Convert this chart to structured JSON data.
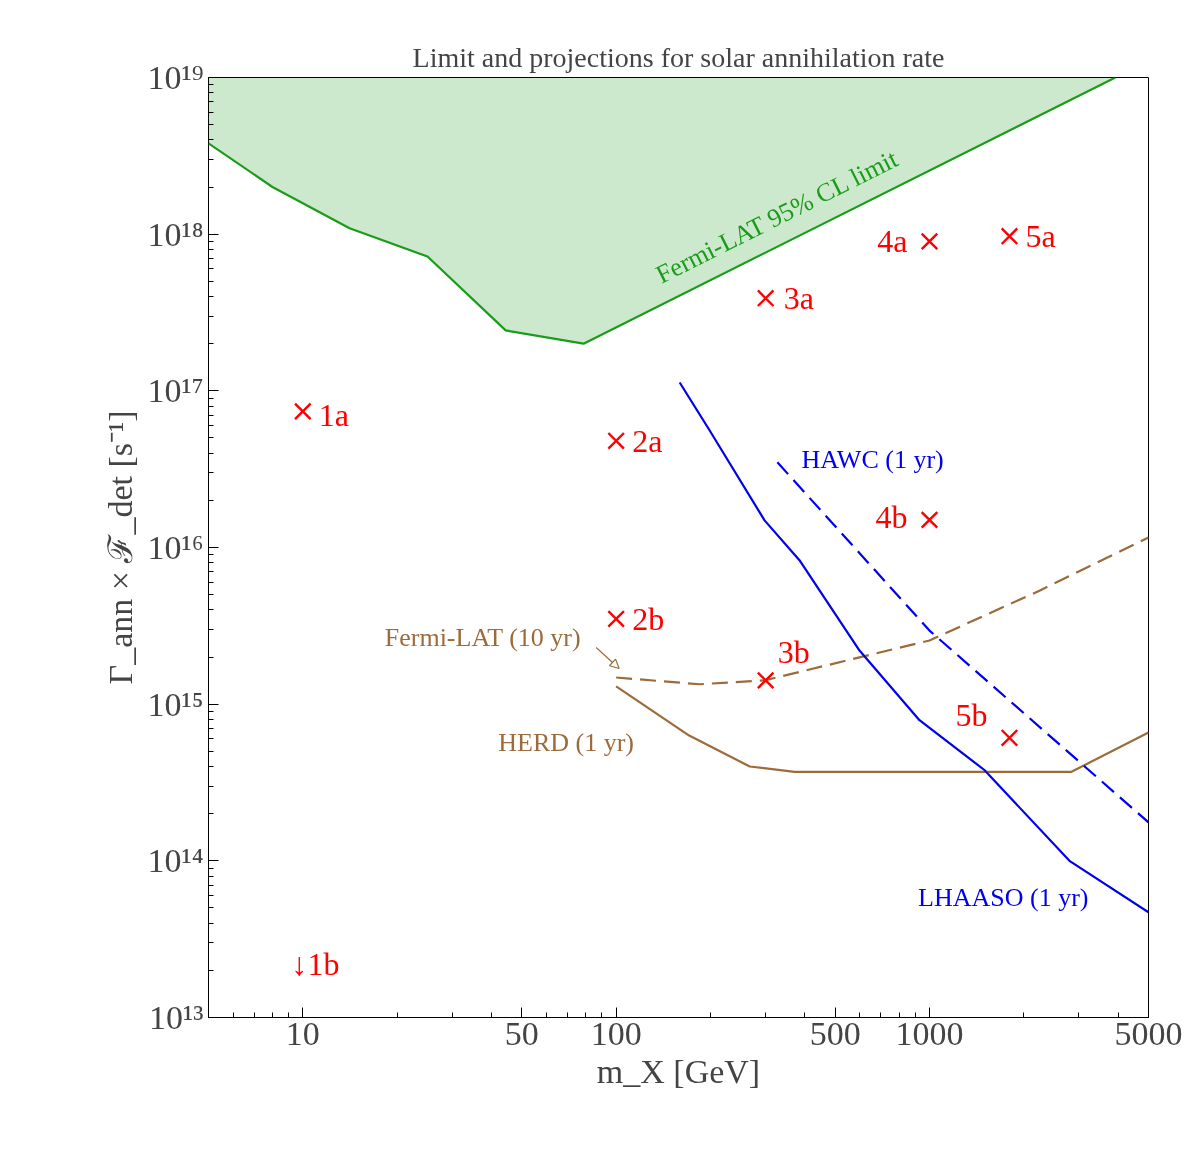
{
  "chart_data": {
    "type": "line",
    "title": "Limit and projections for solar annihilation rate",
    "xlabel": "m_X [GeV]",
    "ylabel": "Γ_ann × ℱ_det [s⁻¹]",
    "log": "xy",
    "grid": false,
    "xlim": [
      5,
      5000
    ],
    "ylim": [
      10000000000000.0,
      1e+19
    ],
    "xticks": [
      10,
      50,
      100,
      500,
      1000,
      5000
    ],
    "yticks": [
      {
        "value": 10000000000000.0,
        "label": "10¹³"
      },
      {
        "value": 100000000000000.0,
        "label": "10¹⁴"
      },
      {
        "value": 1000000000000000.0,
        "label": "10¹⁵"
      },
      {
        "value": 1e+16,
        "label": "10¹⁶"
      },
      {
        "value": 1e+17,
        "label": "10¹⁷"
      },
      {
        "value": 1e+18,
        "label": "10¹⁸"
      },
      {
        "value": 1e+19,
        "label": "10¹⁹"
      }
    ],
    "series": [
      {
        "name": "Fermi-LAT 95% CL limit",
        "color": "#1a9c1a",
        "line_style": "solid",
        "x": [
          5,
          8,
          14.1,
          25,
          44.4,
          78.7,
          3920
        ],
        "values": [
          3.8e+18,
          2e+18,
          1.09e+18,
          7.2e+17,
          2.43e+17,
          2e+17,
          1e+19
        ],
        "lower": [
          3.8e+18,
          2e+18,
          1.09e+18,
          7.2e+17,
          2.43e+17,
          2e+17,
          1e+19
        ],
        "upper": [
          1e+19,
          1e+19,
          1e+19,
          1e+19,
          1e+19,
          1e+19,
          1e+19
        ]
      },
      {
        "name": "Fermi-LAT (10 yr)",
        "color": "#9c6b3a",
        "line_style": "dashed",
        "x": [
          100,
          184.5,
          298,
          1000,
          2244,
          5000
        ],
        "values": [
          1480000000000000.0,
          1340000000000000.0,
          1420000000000000.0,
          2550000000000000.0,
          5300000000000000.0,
          1.16e+16
        ]
      },
      {
        "name": "HERD (1 yr)",
        "color": "#9c6b3a",
        "line_style": "solid",
        "x": [
          100,
          171,
          267,
          371,
          2839,
          5000
        ],
        "values": [
          1300000000000000.0,
          630000000000000.0,
          400000000000000.0,
          370000000000000.0,
          370000000000000.0,
          660000000000000.0
        ]
      },
      {
        "name": "HAWC (1 yr)",
        "color": "#0000ee",
        "line_style": "dashed",
        "x": [
          327,
          1000,
          5000
        ],
        "values": [
          3.5e+16,
          2950000000000000.0,
          176000000000000.0
        ]
      },
      {
        "name": "LHAASO (1 yr)",
        "color": "#0000ee",
        "line_style": "solid",
        "x": [
          159.5,
          198.6,
          297.6,
          384.6,
          598,
          929,
          1497,
          2797,
          5000
        ],
        "values": [
          1.13e+17,
          5.6e+16,
          1.49e+16,
          8300000000000000.0,
          2200000000000000.0,
          790000000000000.0,
          380000000000000.0,
          100000000000000.0,
          47000000000000.0
        ]
      },
      {
        "type": "scatter",
        "color": "#ff0000",
        "marker": "cross",
        "x": [
          10,
          100,
          100,
          300,
          300,
          1000,
          1000,
          1800,
          1800
        ],
        "values": [
          7.4e+16,
          4.8e+16,
          3500000000000000.0,
          3.9e+17,
          1420000000000000.0,
          9e+17,
          1.5e+16,
          9.7e+17,
          610000000000000.0
        ]
      }
    ],
    "annotations": [
      {
        "text": "1a",
        "x": 10,
        "y": 7.4e+16
      },
      {
        "text": "2a",
        "x": 100,
        "y": 4.8e+16
      },
      {
        "text": "2b",
        "x": 100,
        "y": 3500000000000000.0
      },
      {
        "text": "3a",
        "x": 300,
        "y": 3.9e+17
      },
      {
        "text": "3b",
        "x": 300,
        "y": 1420000000000000.0
      },
      {
        "text": "4a",
        "x": 1000,
        "y": 9e+17
      },
      {
        "text": "4b",
        "x": 1000,
        "y": 1.5e+16
      },
      {
        "text": "5a",
        "x": 1800,
        "y": 9.7e+17
      },
      {
        "text": "5b",
        "x": 1800,
        "y": 610000000000000.0
      },
      "↓1b"
    ]
  }
}
